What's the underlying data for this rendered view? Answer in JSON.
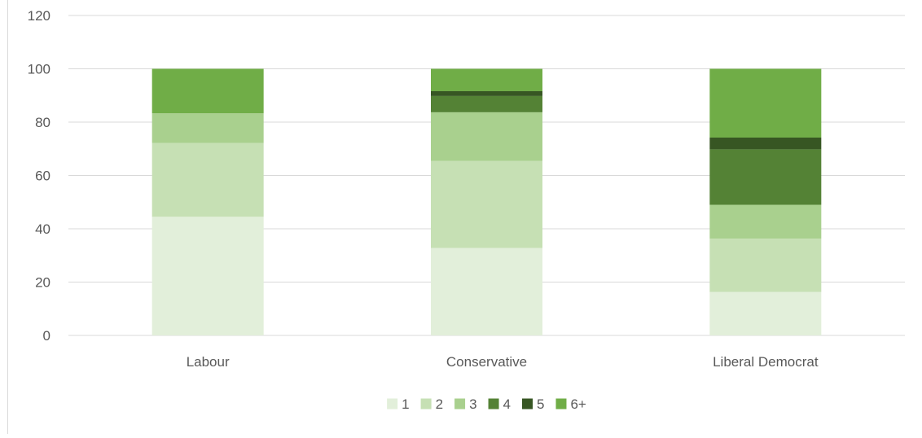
{
  "chart_data": {
    "type": "bar",
    "stacked": true,
    "categories": [
      "Labour",
      "Conservative",
      "Liberal Democrat"
    ],
    "series": [
      {
        "name": "1",
        "values": [
          44.5,
          32.8,
          16.3
        ],
        "color": "#e2efda"
      },
      {
        "name": "2",
        "values": [
          27.7,
          32.7,
          20.0
        ],
        "color": "#c6e0b4"
      },
      {
        "name": "3",
        "values": [
          11.1,
          18.2,
          12.7
        ],
        "color": "#a9d08e"
      },
      {
        "name": "4",
        "values": [
          0,
          6.1,
          20.8
        ],
        "color": "#548235"
      },
      {
        "name": "5",
        "values": [
          0,
          1.8,
          4.4
        ],
        "color": "#375623"
      },
      {
        "name": "6+",
        "values": [
          16.7,
          8.4,
          25.8
        ],
        "color": "#70ad47"
      }
    ],
    "yticks": [
      0,
      20,
      40,
      60,
      80,
      100,
      120
    ],
    "ylim": [
      0,
      120
    ],
    "grid": true,
    "legend": "bottom",
    "title": "",
    "xlabel": "",
    "ylabel": ""
  }
}
